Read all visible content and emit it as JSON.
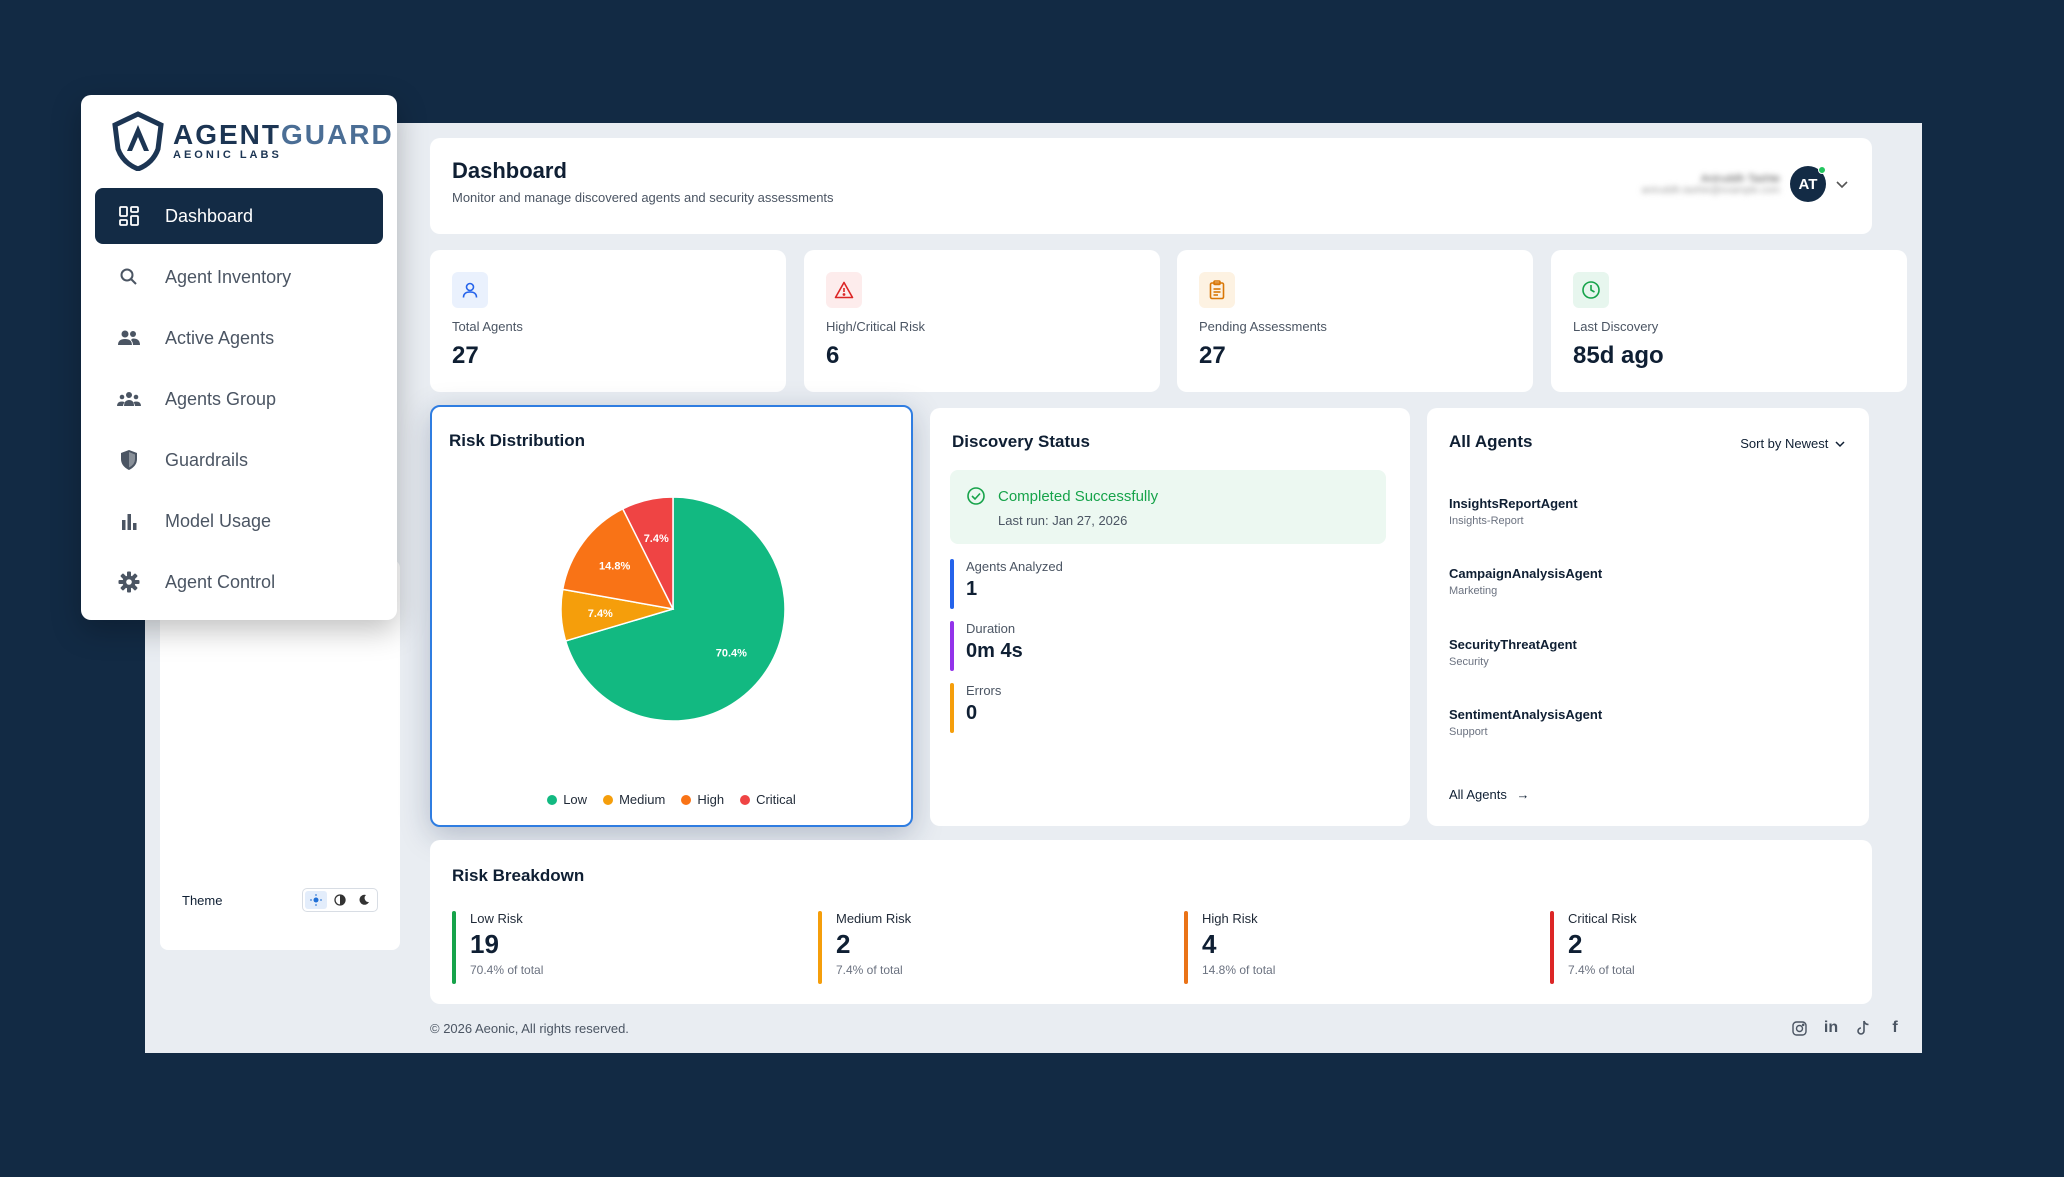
{
  "brand": {
    "name_part1": "AGENT",
    "name_part2": "GUARD",
    "subtitle": "AEONIC LABS"
  },
  "sidebar": {
    "items": [
      {
        "label": "Dashboard",
        "icon": "dashboard-icon",
        "active": true
      },
      {
        "label": "Agent Inventory",
        "icon": "search-icon"
      },
      {
        "label": "Active Agents",
        "icon": "users-icon"
      },
      {
        "label": "Agents Group",
        "icon": "group-icon"
      },
      {
        "label": "Guardrails",
        "icon": "shield-icon"
      },
      {
        "label": "Model Usage",
        "icon": "bar-chart-icon"
      },
      {
        "label": "Agent Control",
        "icon": "gear-icon"
      }
    ],
    "theme_label": "Theme",
    "theme_selected": "light"
  },
  "header": {
    "title": "Dashboard",
    "subtitle": "Monitor and manage discovered agents and security assessments",
    "avatar_initials": "AT"
  },
  "stats": [
    {
      "label": "Total Agents",
      "value": "27",
      "icon": "user-icon",
      "color": "#2563eb"
    },
    {
      "label": "High/Critical Risk",
      "value": "6",
      "icon": "warning-icon",
      "color": "#dc2626"
    },
    {
      "label": "Pending Assessments",
      "value": "27",
      "icon": "clipboard-icon",
      "color": "#d97706"
    },
    {
      "label": "Last Discovery",
      "value": "85d ago",
      "icon": "clock-icon",
      "color": "#16a34a"
    }
  ],
  "risk_distribution": {
    "title": "Risk Distribution"
  },
  "chart_data": {
    "type": "pie",
    "categories": [
      "Low",
      "Medium",
      "High",
      "Critical"
    ],
    "values": [
      70.4,
      7.4,
      14.8,
      7.4
    ],
    "labels": [
      "70.4%",
      "7.4%",
      "14.8%",
      "7.4%"
    ],
    "colors": [
      "#12b981",
      "#f59e0b",
      "#f97316",
      "#ef4444"
    ],
    "title": "Risk Distribution",
    "legend": "bottom"
  },
  "discovery": {
    "title": "Discovery Status",
    "status": "Completed Successfully",
    "last_run": "Last run: Jan 27, 2026",
    "metrics": [
      {
        "label": "Agents Analyzed",
        "value": "1",
        "color": "#2563eb"
      },
      {
        "label": "Duration",
        "value": "0m 4s",
        "color": "#9333ea"
      },
      {
        "label": "Errors",
        "value": "0",
        "color": "#f59e0b"
      }
    ]
  },
  "agents": {
    "title": "All Agents",
    "sort_label": "Sort by Newest",
    "items": [
      {
        "name": "InsightsReportAgent",
        "category": "Insights-Report"
      },
      {
        "name": "CampaignAnalysisAgent",
        "category": "Marketing"
      },
      {
        "name": "SecurityThreatAgent",
        "category": "Security"
      },
      {
        "name": "SentimentAnalysisAgent",
        "category": "Support"
      }
    ],
    "all_link": "All Agents"
  },
  "breakdown": {
    "title": "Risk Breakdown",
    "items": [
      {
        "label": "Low Risk",
        "value": "19",
        "sub": "70.4% of total",
        "color": "#16a34a"
      },
      {
        "label": "Medium Risk",
        "value": "2",
        "sub": "7.4% of total",
        "color": "#f59e0b"
      },
      {
        "label": "High Risk",
        "value": "4",
        "sub": "14.8% of total",
        "color": "#ea7317"
      },
      {
        "label": "Critical Risk",
        "value": "2",
        "sub": "7.4% of total",
        "color": "#dc2626"
      }
    ]
  },
  "footer": {
    "copyright": "© 2026 Aeonic, All rights reserved."
  }
}
